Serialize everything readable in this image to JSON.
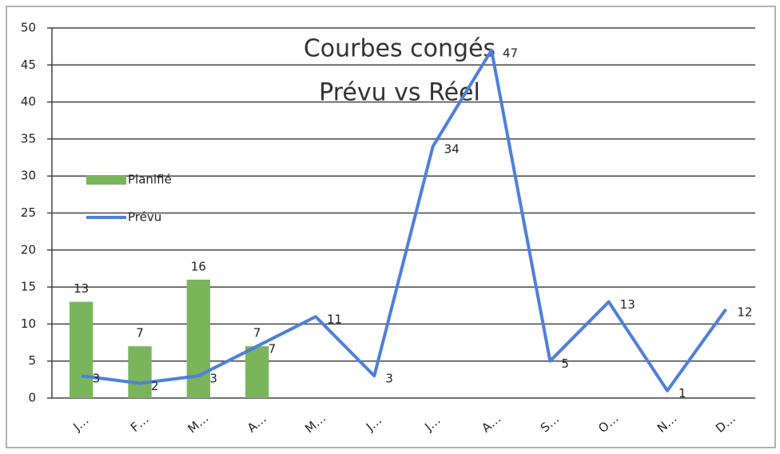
{
  "chart_data": {
    "type": "bar+line",
    "title": [
      "Courbes congés",
      "Prévu vs Réel"
    ],
    "categories": [
      "J…",
      "F…",
      "M…",
      "A…",
      "M…",
      "J…",
      "J…",
      "A…",
      "S…",
      "O…",
      "N…",
      "D…"
    ],
    "series": [
      {
        "name": "Planifié",
        "type": "bar",
        "color": "#7ab55c",
        "values": [
          13,
          7,
          16,
          7,
          null,
          null,
          null,
          null,
          null,
          null,
          null,
          null
        ]
      },
      {
        "name": "Prévu",
        "type": "line",
        "color": "#4f7fd9",
        "values": [
          3,
          2,
          3,
          7,
          11,
          3,
          34,
          47,
          5,
          13,
          1,
          12
        ]
      }
    ],
    "ylim": [
      0,
      50
    ],
    "yticks": [
      0,
      5,
      10,
      15,
      20,
      25,
      30,
      35,
      40,
      45,
      50
    ],
    "grid": true,
    "legend": "left"
  }
}
